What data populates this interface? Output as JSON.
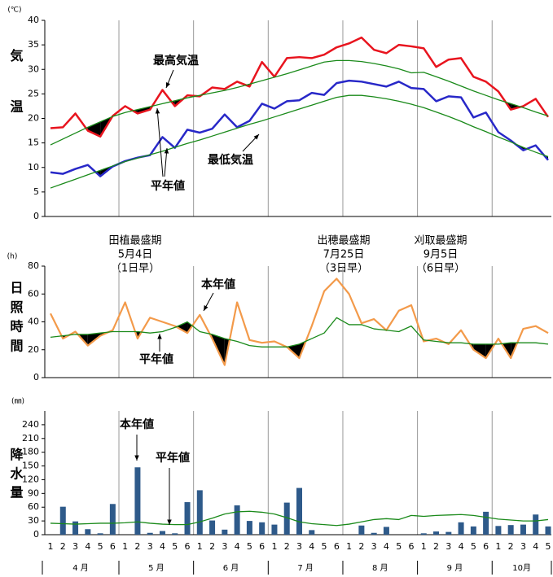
{
  "chart_data": [
    {
      "type": "line",
      "y_label": "気温",
      "unit": "(℃)",
      "ylim": [
        0,
        40
      ],
      "yticks": [
        0,
        5,
        10,
        15,
        20,
        25,
        30,
        35,
        40
      ],
      "series": [
        {
          "name": "最高気温",
          "color": "#e8141e",
          "values": [
            18,
            18.2,
            21,
            17.5,
            16.3,
            20.5,
            22.5,
            21,
            21.8,
            25.8,
            22.5,
            24.7,
            24.5,
            26.3,
            26,
            27.5,
            26.5,
            31.5,
            28.5,
            32.3,
            32.5,
            32.3,
            33,
            34.5,
            35.3,
            36.5,
            34,
            33.3,
            35,
            34.7,
            34.3,
            30.5,
            32,
            32.3,
            28.5,
            27.5,
            25.5,
            21.8,
            22.5,
            24,
            20.3
          ]
        },
        {
          "name": "平年値",
          "color": "#1a8a1a",
          "values": [
            14.6,
            15.8,
            17,
            18.2,
            19.3,
            20.4,
            21.2,
            21.8,
            22.4,
            23,
            23.6,
            24.2,
            24.7,
            25.2,
            25.7,
            26.3,
            27,
            27.7,
            28.4,
            29.1,
            29.9,
            30.7,
            31.5,
            31.8,
            31.8,
            31.6,
            31.2,
            30.7,
            30.1,
            29.3,
            29.4,
            28.5,
            27.6,
            26.6,
            25.6,
            24.7,
            23.8,
            23,
            22.2,
            21.3,
            20.5
          ]
        },
        {
          "name": "最低気温",
          "color": "#2828c8",
          "values": [
            9,
            8.7,
            9.7,
            10.5,
            8.2,
            10.2,
            11.3,
            12,
            12.5,
            16.2,
            14,
            17.7,
            17.1,
            17.9,
            20.8,
            18.2,
            19.5,
            23,
            22,
            23.5,
            23.7,
            25.2,
            24.8,
            27.2,
            27.7,
            27.5,
            27,
            26.5,
            27.5,
            26.2,
            26,
            23.5,
            24.5,
            24.3,
            20.2,
            21.2,
            17.2,
            15.5,
            13.5,
            14.5,
            11.5
          ]
        },
        {
          "name": "平年値",
          "color": "#1a8a1a",
          "values": [
            5.8,
            6.7,
            7.6,
            8.5,
            9.4,
            10.3,
            11.2,
            11.9,
            12.6,
            13.3,
            14.1,
            14.9,
            15.6,
            16.4,
            17.2,
            18,
            18.8,
            19.5,
            20.3,
            21.1,
            21.9,
            22.7,
            23.5,
            24.3,
            24.7,
            24.7,
            24.4,
            24,
            23.5,
            22.9,
            22.2,
            21.3,
            20.4,
            19.4,
            18.3,
            17.3,
            16.2,
            15.2,
            14.1,
            13.1,
            12.2
          ]
        }
      ],
      "below_normal_fill": "#000000",
      "annotations": [
        {
          "text": [
            "最高気温"
          ],
          "color": "#e8141e"
        },
        {
          "text": [
            "最低気温"
          ],
          "color": "#2828c8"
        },
        {
          "text": [
            "平年値"
          ],
          "color": "#000000"
        },
        {
          "text": [
            "田植最盛期",
            "5月4日",
            "（1日早）"
          ],
          "color": "#000000"
        },
        {
          "text": [
            "出穂最盛期",
            "7月25日",
            "（3日早）"
          ],
          "color": "#000000"
        },
        {
          "text": [
            "刈取最盛期",
            "9月5日",
            "（6日早）"
          ],
          "color": "#000000"
        }
      ]
    },
    {
      "type": "line",
      "y_label": "日照時間",
      "unit": "(h)",
      "ylim": [
        0,
        80
      ],
      "yticks": [
        0,
        20,
        40,
        60,
        80
      ],
      "series": [
        {
          "name": "本年値",
          "color": "#f39a4a",
          "values": [
            46,
            28,
            33,
            23,
            30,
            34,
            54,
            28,
            43,
            40,
            37,
            32,
            45,
            28,
            9,
            54,
            27,
            25,
            26,
            22,
            14,
            37,
            62,
            71,
            60,
            39,
            42,
            34,
            48,
            52,
            26,
            28,
            24,
            34,
            20,
            14,
            28,
            14,
            35,
            37,
            32
          ]
        },
        {
          "name": "平年値",
          "color": "#1a8a1a",
          "values": [
            29,
            30,
            31,
            31,
            32,
            33,
            33,
            33,
            32,
            33,
            36,
            40,
            33,
            31,
            28,
            26,
            23,
            22,
            22,
            22,
            24,
            28,
            32,
            43,
            38,
            38,
            35,
            34,
            33,
            37,
            27,
            26,
            25,
            25,
            24,
            24,
            24,
            25,
            25,
            25,
            24
          ]
        }
      ],
      "below_normal_fill": "#000000",
      "annotations": [
        {
          "text": [
            "本年値"
          ],
          "color": "#000000"
        },
        {
          "text": [
            "平年値"
          ],
          "color": "#000000"
        }
      ]
    },
    {
      "type": "bar",
      "y_label": "降水量",
      "unit": "(㎜)",
      "ylim": [
        0,
        270
      ],
      "yticks": [
        0,
        30,
        60,
        90,
        120,
        150,
        180,
        210,
        240
      ],
      "categories": [
        "1",
        "2",
        "3",
        "4",
        "5",
        "6",
        "1",
        "2",
        "3",
        "4",
        "5",
        "6",
        "1",
        "2",
        "3",
        "4",
        "5",
        "6",
        "1",
        "2",
        "3",
        "4",
        "5",
        "6",
        "1",
        "2",
        "3",
        "4",
        "5",
        "6",
        "1",
        "2",
        "3",
        "4",
        "5",
        "6",
        "1",
        "2",
        "3",
        "4",
        "5"
      ],
      "months": [
        "4 月",
        "5 月",
        "6 月",
        "7 月",
        "8 月",
        "9 月",
        "10月"
      ],
      "series": [
        {
          "name": "本年値",
          "type": "bar",
          "color": "#2e5a8a",
          "values": [
            0,
            61,
            29,
            12,
            3,
            67,
            0,
            147,
            4,
            8,
            3,
            71,
            97,
            31,
            11,
            64,
            30,
            27,
            22,
            70,
            102,
            10,
            0,
            0,
            0,
            20,
            4,
            17,
            0,
            0,
            3,
            7,
            6,
            27,
            18,
            50,
            19,
            21,
            22,
            44,
            18
          ]
        },
        {
          "name": "平年値",
          "type": "line",
          "color": "#1a8a1a",
          "values": [
            25,
            24,
            23,
            24,
            25,
            25,
            26,
            28,
            25,
            23,
            22,
            22,
            28,
            36,
            45,
            50,
            51,
            49,
            45,
            37,
            28,
            24,
            22,
            20,
            23,
            28,
            33,
            35,
            33,
            42,
            40,
            42,
            43,
            44,
            42,
            38,
            34,
            32,
            30,
            30,
            33
          ]
        }
      ],
      "annotations": [
        {
          "text": [
            "本年値"
          ],
          "color": "#000000"
        },
        {
          "text": [
            "平年値"
          ],
          "color": "#000000"
        }
      ]
    }
  ]
}
